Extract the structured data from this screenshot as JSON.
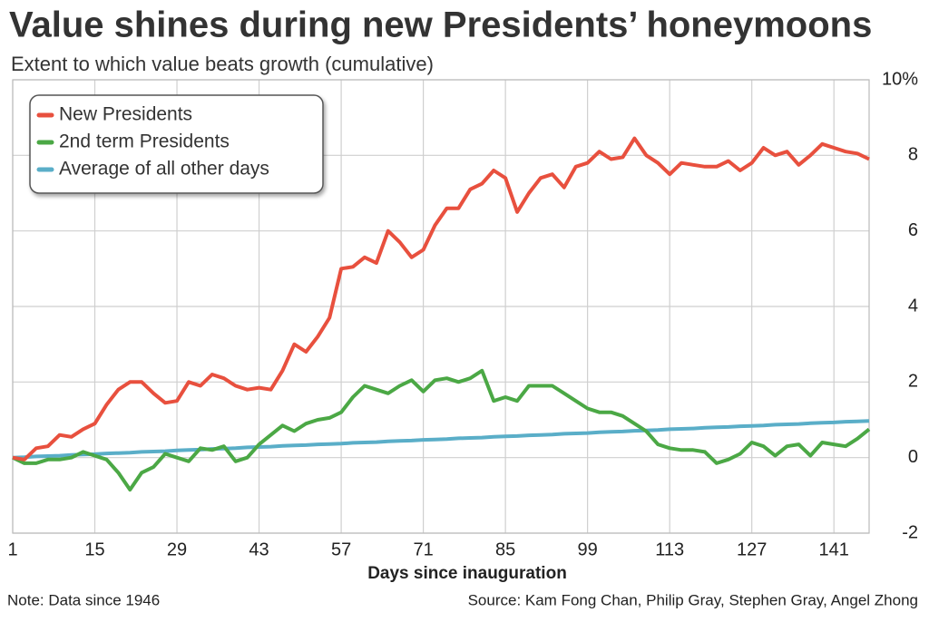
{
  "chart_data": {
    "type": "line",
    "title": "Value shines during new Presidents’ honeymoons",
    "subtitle": "Extent to which value beats growth (cumulative)",
    "x_label": "Days since inauguration",
    "note": "Note: Data since 1946",
    "source": "Source: Kam Fong Chan, Philip Gray, Stephen Gray, Angel Zhong",
    "xlim": [
      1,
      147
    ],
    "xticks": [
      1,
      15,
      29,
      43,
      57,
      71,
      85,
      99,
      113,
      127,
      141
    ],
    "ylim": [
      -2,
      10
    ],
    "yticks": [
      -2,
      0,
      2,
      4,
      6,
      8,
      {
        "value": 10,
        "label": "10%"
      }
    ],
    "grid": true,
    "legend": "upper left",
    "x": [
      1,
      3,
      5,
      7,
      9,
      11,
      13,
      15,
      17,
      19,
      21,
      23,
      25,
      27,
      29,
      31,
      33,
      35,
      37,
      39,
      41,
      43,
      45,
      47,
      49,
      51,
      53,
      55,
      57,
      59,
      61,
      63,
      65,
      67,
      69,
      71,
      73,
      75,
      77,
      79,
      81,
      83,
      85,
      87,
      89,
      91,
      93,
      95,
      97,
      99,
      101,
      103,
      105,
      107,
      109,
      111,
      113,
      115,
      117,
      119,
      121,
      123,
      125,
      127,
      129,
      131,
      133,
      135,
      137,
      139,
      141,
      143,
      145,
      147
    ],
    "series": [
      {
        "name": "New Presidents",
        "color": "#e8503e",
        "values": [
          0,
          -0.05,
          0.25,
          0.3,
          0.6,
          0.55,
          0.75,
          0.9,
          1.4,
          1.8,
          2.0,
          2.0,
          1.7,
          1.45,
          1.5,
          2.0,
          1.9,
          2.2,
          2.1,
          1.9,
          1.8,
          1.85,
          1.8,
          2.3,
          3.0,
          2.8,
          3.2,
          3.7,
          5.0,
          5.05,
          5.3,
          5.15,
          6.0,
          5.7,
          5.3,
          5.5,
          6.15,
          6.6,
          6.6,
          7.1,
          7.25,
          7.6,
          7.4,
          6.5,
          7.0,
          7.4,
          7.5,
          7.15,
          7.7,
          7.8,
          8.1,
          7.9,
          7.95,
          8.45,
          8.0,
          7.8,
          7.5,
          7.8,
          7.75,
          7.7,
          7.7,
          7.85,
          7.6,
          7.8,
          8.2,
          8.0,
          8.1,
          7.75,
          8.0,
          8.3,
          8.2,
          8.1,
          8.05,
          7.9
        ]
      },
      {
        "name": "2nd term Presidents",
        "color": "#4ba845",
        "values": [
          0,
          -0.15,
          -0.15,
          -0.05,
          -0.05,
          0,
          0.15,
          0.05,
          -0.05,
          -0.4,
          -0.85,
          -0.4,
          -0.25,
          0.1,
          0,
          -0.1,
          0.25,
          0.2,
          0.3,
          -0.1,
          0,
          0.35,
          0.6,
          0.85,
          0.7,
          0.9,
          1.0,
          1.05,
          1.2,
          1.6,
          1.9,
          1.8,
          1.7,
          1.9,
          2.05,
          1.75,
          2.05,
          2.1,
          2.0,
          2.1,
          2.3,
          1.5,
          1.6,
          1.5,
          1.9,
          1.9,
          1.9,
          1.7,
          1.5,
          1.3,
          1.2,
          1.2,
          1.1,
          0.9,
          0.7,
          0.35,
          0.25,
          0.2,
          0.2,
          0.15,
          -0.15,
          -0.05,
          0.1,
          0.4,
          0.3,
          0.05,
          0.3,
          0.35,
          0.05,
          0.4,
          0.35,
          0.3,
          0.5,
          0.75
        ]
      },
      {
        "name": "Average of all other days",
        "color": "#5aaec8",
        "values": [
          0,
          0.01,
          0.03,
          0.04,
          0.05,
          0.07,
          0.08,
          0.09,
          0.11,
          0.12,
          0.13,
          0.15,
          0.16,
          0.17,
          0.19,
          0.2,
          0.21,
          0.23,
          0.24,
          0.25,
          0.27,
          0.28,
          0.29,
          0.31,
          0.32,
          0.33,
          0.35,
          0.36,
          0.37,
          0.39,
          0.4,
          0.41,
          0.43,
          0.44,
          0.45,
          0.47,
          0.48,
          0.49,
          0.51,
          0.52,
          0.53,
          0.55,
          0.56,
          0.57,
          0.59,
          0.6,
          0.61,
          0.63,
          0.64,
          0.65,
          0.67,
          0.68,
          0.69,
          0.71,
          0.72,
          0.73,
          0.75,
          0.76,
          0.77,
          0.79,
          0.8,
          0.81,
          0.83,
          0.84,
          0.85,
          0.87,
          0.88,
          0.89,
          0.91,
          0.92,
          0.93,
          0.95,
          0.96,
          0.97
        ]
      }
    ]
  }
}
